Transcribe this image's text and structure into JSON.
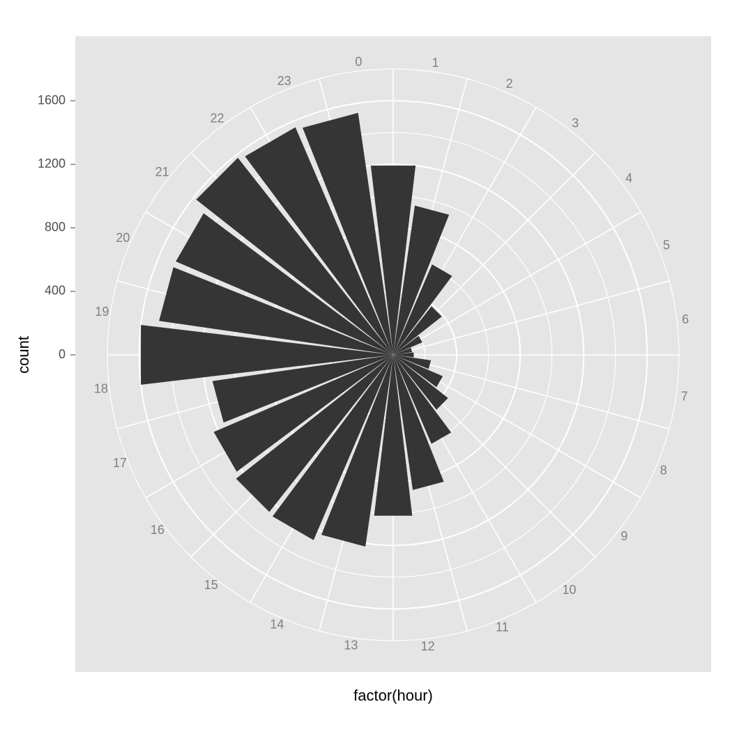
{
  "chart_data": {
    "type": "bar",
    "coord": "polar",
    "xlabel": "factor(hour)",
    "ylabel": "count",
    "categories": [
      "0",
      "1",
      "2",
      "3",
      "4",
      "5",
      "6",
      "7",
      "8",
      "9",
      "10",
      "11",
      "12",
      "13",
      "14",
      "15",
      "16",
      "17",
      "18",
      "19",
      "20",
      "21",
      "22",
      "23"
    ],
    "values": [
      1200,
      950,
      620,
      390,
      200,
      120,
      130,
      240,
      340,
      440,
      610,
      860,
      1020,
      1220,
      1270,
      1260,
      1230,
      1150,
      1600,
      1490,
      1490,
      1580,
      1560,
      1540
    ],
    "y_ticks": [
      "0",
      "400",
      "800",
      "1200",
      "1600"
    ],
    "ylim": [
      0,
      1800
    ],
    "grid": true
  },
  "colors": {
    "panel_background": "#e5e5e5",
    "grid_line": "#ffffff",
    "bar_fill": "#353535",
    "tick_text": "#4d4d4d",
    "hour_text": "#7f7f7f"
  }
}
